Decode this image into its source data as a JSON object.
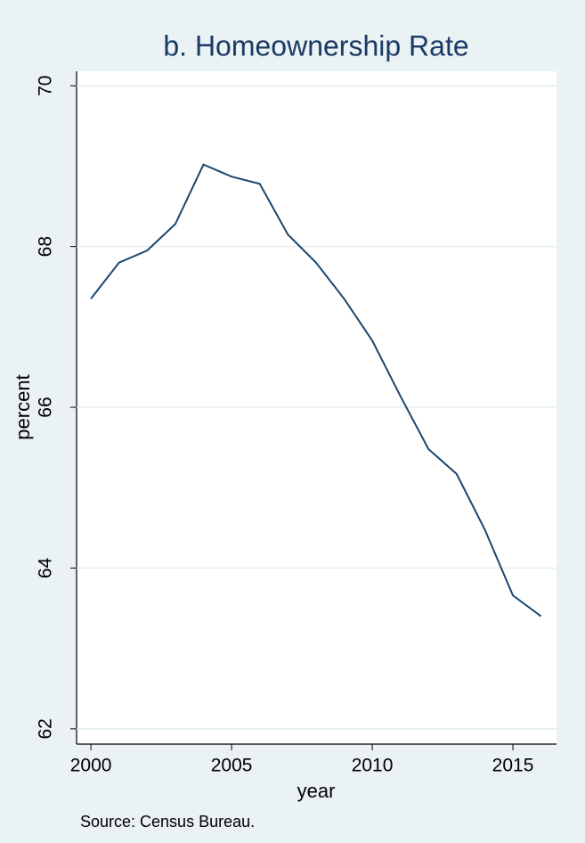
{
  "chart_data": {
    "type": "line",
    "title": "b. Homeownership Rate",
    "xlabel": "year",
    "ylabel": "percent",
    "note": "Source: Census Bureau.",
    "x": [
      2000,
      2001,
      2002,
      2003,
      2004,
      2005,
      2006,
      2007,
      2008,
      2009,
      2010,
      2011,
      2012,
      2013,
      2014,
      2015,
      2016
    ],
    "series": [
      {
        "name": "percent",
        "color": "#1a476f",
        "values": [
          67.35,
          67.8,
          67.95,
          68.28,
          69.02,
          68.87,
          68.78,
          68.15,
          67.8,
          67.35,
          66.83,
          66.14,
          65.48,
          65.17,
          64.48,
          63.66,
          63.4
        ]
      }
    ],
    "xlim": [
      1999.49,
      2016.55
    ],
    "xticks": [
      2000,
      2005,
      2010,
      2015
    ],
    "ylim": [
      61.81,
      70.18
    ],
    "yticks": [
      62,
      64,
      66,
      68,
      70
    ],
    "grid": true
  }
}
